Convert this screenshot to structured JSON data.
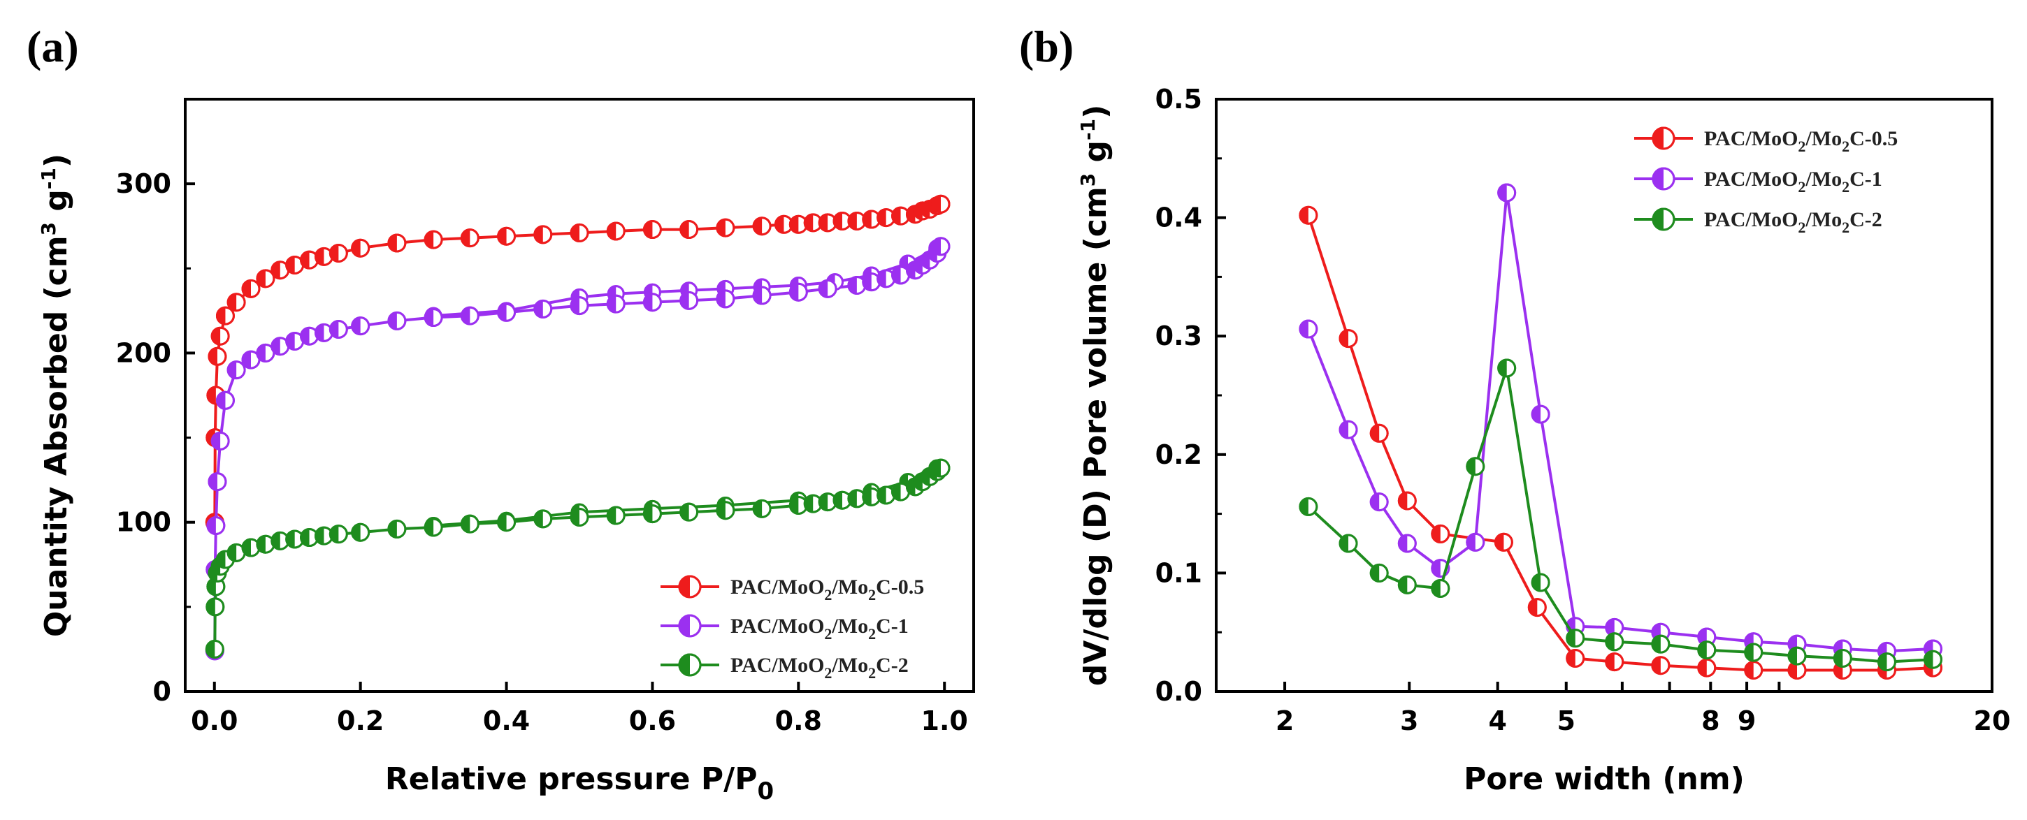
{
  "chart_data": [
    {
      "panel": "(a)",
      "type": "line",
      "xlabel": "Relative pressure P/P",
      "xlabel_sub": "0",
      "ylabel": "Quantity Absorbed (cm",
      "ylabel_sup": "3",
      "ylabel_unit": " g",
      "ylabel_sup2": "-1",
      "ylabel_close": ")",
      "xlim": [
        -0.04,
        1.04
      ],
      "ylim": [
        0,
        350
      ],
      "xticks": [
        0.0,
        0.2,
        0.4,
        0.6,
        0.8,
        1.0
      ],
      "xtick_labels": [
        "0.0",
        "0.2",
        "0.4",
        "0.6",
        "0.8",
        "1.0"
      ],
      "yticks": [
        0,
        100,
        200,
        300
      ],
      "ytick_labels": [
        "0",
        "100",
        "200",
        "300"
      ],
      "legend_position": "bottom-right",
      "series": [
        {
          "name": "PAC/MoO2/Mo2C-0.5",
          "label_parts": [
            "PAC/MoO",
            "2",
            "/Mo",
            "2",
            "C-0.5"
          ],
          "color": "#ee1c1c",
          "x": [
            0.0005,
            0.001,
            0.002,
            0.004,
            0.008,
            0.015,
            0.03,
            0.05,
            0.07,
            0.09,
            0.11,
            0.13,
            0.15,
            0.17,
            0.2,
            0.25,
            0.3,
            0.35,
            0.4,
            0.45,
            0.5,
            0.55,
            0.6,
            0.65,
            0.7,
            0.75,
            0.78,
            0.8,
            0.82,
            0.84,
            0.86,
            0.88,
            0.9,
            0.92,
            0.94,
            0.96,
            0.97,
            0.98,
            0.99,
            0.995
          ],
          "y": [
            100,
            150,
            175,
            198,
            210,
            222,
            230,
            238,
            244,
            249,
            252,
            255,
            257,
            259,
            262,
            265,
            267,
            268,
            269,
            270,
            271,
            272,
            273,
            273,
            274,
            275,
            276,
            276,
            277,
            277,
            278,
            278,
            279,
            280,
            281,
            282,
            284,
            285,
            287,
            288
          ]
        },
        {
          "name": "PAC/MoO2/Mo2C-1",
          "label_parts": [
            "PAC/MoO",
            "2",
            "/Mo",
            "2",
            "C-1"
          ],
          "color": "#9b30f0",
          "x": [
            0.0005,
            0.001,
            0.002,
            0.004,
            0.008,
            0.015,
            0.03,
            0.05,
            0.07,
            0.09,
            0.11,
            0.13,
            0.15,
            0.17,
            0.2,
            0.25,
            0.3,
            0.35,
            0.4,
            0.45,
            0.5,
            0.55,
            0.6,
            0.65,
            0.7,
            0.75,
            0.8,
            0.84,
            0.88,
            0.9,
            0.92,
            0.94,
            0.96,
            0.97,
            0.98,
            0.99,
            0.995
          ],
          "y": [
            24,
            72,
            98,
            124,
            148,
            172,
            190,
            196,
            200,
            204,
            207,
            210,
            212,
            214,
            216,
            219,
            221,
            222,
            224,
            226,
            228,
            229,
            230,
            231,
            232,
            234,
            236,
            238,
            240,
            242,
            244,
            246,
            249,
            252,
            255,
            259,
            263
          ],
          "desorption_x": [
            0.3,
            0.4,
            0.5,
            0.55,
            0.6,
            0.65,
            0.7,
            0.75,
            0.8,
            0.85,
            0.9,
            0.95,
            0.99
          ],
          "desorption_y": [
            222,
            225,
            233,
            235,
            236,
            237,
            238,
            239,
            240,
            242,
            246,
            253,
            262
          ]
        },
        {
          "name": "PAC/MoO2/Mo2C-2",
          "label_parts": [
            "PAC/MoO",
            "2",
            "/Mo",
            "2",
            "C-2"
          ],
          "color": "#1e8c1e",
          "x": [
            0.0005,
            0.001,
            0.002,
            0.004,
            0.008,
            0.015,
            0.03,
            0.05,
            0.07,
            0.09,
            0.11,
            0.13,
            0.15,
            0.17,
            0.2,
            0.25,
            0.3,
            0.35,
            0.4,
            0.45,
            0.5,
            0.55,
            0.6,
            0.65,
            0.7,
            0.75,
            0.8,
            0.82,
            0.84,
            0.86,
            0.88,
            0.9,
            0.92,
            0.94,
            0.96,
            0.97,
            0.98,
            0.99,
            0.995
          ],
          "y": [
            25,
            50,
            62,
            70,
            74,
            78,
            82,
            85,
            87,
            89,
            90,
            91,
            92,
            93,
            94,
            96,
            97,
            99,
            100,
            102,
            103,
            104,
            105,
            106,
            107,
            108,
            110,
            111,
            112,
            113,
            114,
            115,
            116,
            118,
            121,
            124,
            127,
            130,
            132
          ],
          "desorption_x": [
            0.3,
            0.4,
            0.5,
            0.6,
            0.7,
            0.8,
            0.9,
            0.95,
            0.99
          ],
          "desorption_y": [
            98,
            101,
            106,
            108,
            110,
            113,
            118,
            124,
            132
          ]
        }
      ]
    },
    {
      "panel": "(b)",
      "type": "line",
      "xscale": "log",
      "xlabel": "Pore width (nm)",
      "ylabel": "dV/dlog (D) Pore volume (cm",
      "ylabel_sup": "3",
      "ylabel_unit": " g",
      "ylabel_sup2": "-1",
      "ylabel_close": ")",
      "xlim": [
        1.6,
        20
      ],
      "ylim": [
        0,
        0.5
      ],
      "xticks": [
        2,
        3,
        4,
        5,
        6,
        7,
        8,
        9,
        10,
        20
      ],
      "xtick_labels": [
        "2",
        "3",
        "4",
        "5",
        "",
        "",
        "8",
        "9",
        "",
        "20"
      ],
      "yticks": [
        0.0,
        0.1,
        0.2,
        0.3,
        0.4,
        0.5
      ],
      "ytick_labels": [
        "0.0",
        "0.1",
        "0.2",
        "0.3",
        "0.4",
        "0.5"
      ],
      "legend_position": "top-right",
      "series": [
        {
          "name": "PAC/MoO2/Mo2C-0.5",
          "label_parts": [
            "PAC/MoO",
            "2",
            "/Mo",
            "2",
            "C-0.5"
          ],
          "color": "#ee1c1c",
          "x": [
            2.16,
            2.46,
            2.72,
            2.98,
            3.32,
            4.08,
            4.55,
            5.15,
            5.85,
            6.8,
            7.9,
            9.2,
            10.6,
            12.3,
            14.2,
            16.5
          ],
          "y": [
            0.402,
            0.298,
            0.218,
            0.161,
            0.133,
            0.126,
            0.071,
            0.028,
            0.025,
            0.022,
            0.02,
            0.018,
            0.018,
            0.018,
            0.018,
            0.02
          ]
        },
        {
          "name": "PAC/MoO2/Mo2C-1",
          "label_parts": [
            "PAC/MoO",
            "2",
            "/Mo",
            "2",
            "C-1"
          ],
          "color": "#9b30f0",
          "x": [
            2.16,
            2.46,
            2.72,
            2.98,
            3.32,
            3.72,
            4.12,
            4.6,
            5.15,
            5.85,
            6.8,
            7.9,
            9.2,
            10.6,
            12.3,
            14.2,
            16.5
          ],
          "y": [
            0.306,
            0.221,
            0.16,
            0.125,
            0.104,
            0.126,
            0.421,
            0.234,
            0.055,
            0.054,
            0.05,
            0.046,
            0.042,
            0.04,
            0.036,
            0.034,
            0.036
          ]
        },
        {
          "name": "PAC/MoO2/Mo2C-2",
          "label_parts": [
            "PAC/MoO",
            "2",
            "/Mo",
            "2",
            "C-2"
          ],
          "color": "#1e8c1e",
          "x": [
            2.16,
            2.46,
            2.72,
            2.98,
            3.32,
            3.72,
            4.12,
            4.6,
            5.15,
            5.85,
            6.8,
            7.9,
            9.2,
            10.6,
            12.3,
            14.2,
            16.5
          ],
          "y": [
            0.156,
            0.125,
            0.1,
            0.09,
            0.087,
            0.19,
            0.273,
            0.092,
            0.045,
            0.042,
            0.04,
            0.035,
            0.033,
            0.03,
            0.028,
            0.025,
            0.027
          ]
        }
      ]
    }
  ]
}
